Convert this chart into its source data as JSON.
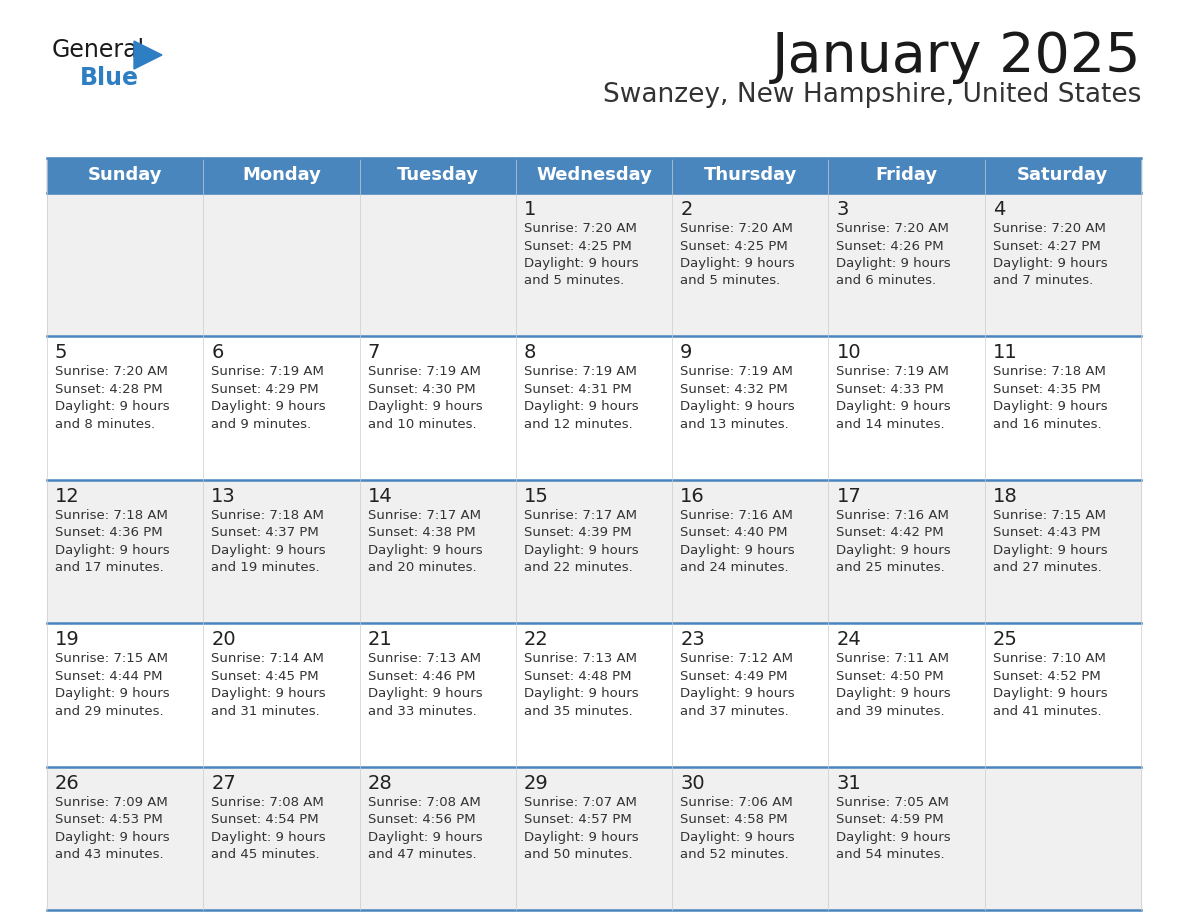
{
  "title": "January 2025",
  "subtitle": "Swanzey, New Hampshire, United States",
  "days_of_week": [
    "Sunday",
    "Monday",
    "Tuesday",
    "Wednesday",
    "Thursday",
    "Friday",
    "Saturday"
  ],
  "header_bg": "#4a86be",
  "header_text": "#ffffff",
  "cell_bg_odd": "#f0f0f0",
  "cell_bg_even": "#ffffff",
  "separator_color": "#4a86be",
  "day_num_color": "#222222",
  "cell_text_color": "#333333",
  "title_color": "#1a1a1a",
  "subtitle_color": "#333333",
  "logo_general_color": "#1a1a1a",
  "logo_blue_color": "#2e7ec4",
  "calendar_data": [
    {
      "day": 1,
      "col": 3,
      "row": 0,
      "sunrise": "7:20 AM",
      "sunset": "4:25 PM",
      "daylight": "9 hours\nand 5 minutes."
    },
    {
      "day": 2,
      "col": 4,
      "row": 0,
      "sunrise": "7:20 AM",
      "sunset": "4:25 PM",
      "daylight": "9 hours\nand 5 minutes."
    },
    {
      "day": 3,
      "col": 5,
      "row": 0,
      "sunrise": "7:20 AM",
      "sunset": "4:26 PM",
      "daylight": "9 hours\nand 6 minutes."
    },
    {
      "day": 4,
      "col": 6,
      "row": 0,
      "sunrise": "7:20 AM",
      "sunset": "4:27 PM",
      "daylight": "9 hours\nand 7 minutes."
    },
    {
      "day": 5,
      "col": 0,
      "row": 1,
      "sunrise": "7:20 AM",
      "sunset": "4:28 PM",
      "daylight": "9 hours\nand 8 minutes."
    },
    {
      "day": 6,
      "col": 1,
      "row": 1,
      "sunrise": "7:19 AM",
      "sunset": "4:29 PM",
      "daylight": "9 hours\nand 9 minutes."
    },
    {
      "day": 7,
      "col": 2,
      "row": 1,
      "sunrise": "7:19 AM",
      "sunset": "4:30 PM",
      "daylight": "9 hours\nand 10 minutes."
    },
    {
      "day": 8,
      "col": 3,
      "row": 1,
      "sunrise": "7:19 AM",
      "sunset": "4:31 PM",
      "daylight": "9 hours\nand 12 minutes."
    },
    {
      "day": 9,
      "col": 4,
      "row": 1,
      "sunrise": "7:19 AM",
      "sunset": "4:32 PM",
      "daylight": "9 hours\nand 13 minutes."
    },
    {
      "day": 10,
      "col": 5,
      "row": 1,
      "sunrise": "7:19 AM",
      "sunset": "4:33 PM",
      "daylight": "9 hours\nand 14 minutes."
    },
    {
      "day": 11,
      "col": 6,
      "row": 1,
      "sunrise": "7:18 AM",
      "sunset": "4:35 PM",
      "daylight": "9 hours\nand 16 minutes."
    },
    {
      "day": 12,
      "col": 0,
      "row": 2,
      "sunrise": "7:18 AM",
      "sunset": "4:36 PM",
      "daylight": "9 hours\nand 17 minutes."
    },
    {
      "day": 13,
      "col": 1,
      "row": 2,
      "sunrise": "7:18 AM",
      "sunset": "4:37 PM",
      "daylight": "9 hours\nand 19 minutes."
    },
    {
      "day": 14,
      "col": 2,
      "row": 2,
      "sunrise": "7:17 AM",
      "sunset": "4:38 PM",
      "daylight": "9 hours\nand 20 minutes."
    },
    {
      "day": 15,
      "col": 3,
      "row": 2,
      "sunrise": "7:17 AM",
      "sunset": "4:39 PM",
      "daylight": "9 hours\nand 22 minutes."
    },
    {
      "day": 16,
      "col": 4,
      "row": 2,
      "sunrise": "7:16 AM",
      "sunset": "4:40 PM",
      "daylight": "9 hours\nand 24 minutes."
    },
    {
      "day": 17,
      "col": 5,
      "row": 2,
      "sunrise": "7:16 AM",
      "sunset": "4:42 PM",
      "daylight": "9 hours\nand 25 minutes."
    },
    {
      "day": 18,
      "col": 6,
      "row": 2,
      "sunrise": "7:15 AM",
      "sunset": "4:43 PM",
      "daylight": "9 hours\nand 27 minutes."
    },
    {
      "day": 19,
      "col": 0,
      "row": 3,
      "sunrise": "7:15 AM",
      "sunset": "4:44 PM",
      "daylight": "9 hours\nand 29 minutes."
    },
    {
      "day": 20,
      "col": 1,
      "row": 3,
      "sunrise": "7:14 AM",
      "sunset": "4:45 PM",
      "daylight": "9 hours\nand 31 minutes."
    },
    {
      "day": 21,
      "col": 2,
      "row": 3,
      "sunrise": "7:13 AM",
      "sunset": "4:46 PM",
      "daylight": "9 hours\nand 33 minutes."
    },
    {
      "day": 22,
      "col": 3,
      "row": 3,
      "sunrise": "7:13 AM",
      "sunset": "4:48 PM",
      "daylight": "9 hours\nand 35 minutes."
    },
    {
      "day": 23,
      "col": 4,
      "row": 3,
      "sunrise": "7:12 AM",
      "sunset": "4:49 PM",
      "daylight": "9 hours\nand 37 minutes."
    },
    {
      "day": 24,
      "col": 5,
      "row": 3,
      "sunrise": "7:11 AM",
      "sunset": "4:50 PM",
      "daylight": "9 hours\nand 39 minutes."
    },
    {
      "day": 25,
      "col": 6,
      "row": 3,
      "sunrise": "7:10 AM",
      "sunset": "4:52 PM",
      "daylight": "9 hours\nand 41 minutes."
    },
    {
      "day": 26,
      "col": 0,
      "row": 4,
      "sunrise": "7:09 AM",
      "sunset": "4:53 PM",
      "daylight": "9 hours\nand 43 minutes."
    },
    {
      "day": 27,
      "col": 1,
      "row": 4,
      "sunrise": "7:08 AM",
      "sunset": "4:54 PM",
      "daylight": "9 hours\nand 45 minutes."
    },
    {
      "day": 28,
      "col": 2,
      "row": 4,
      "sunrise": "7:08 AM",
      "sunset": "4:56 PM",
      "daylight": "9 hours\nand 47 minutes."
    },
    {
      "day": 29,
      "col": 3,
      "row": 4,
      "sunrise": "7:07 AM",
      "sunset": "4:57 PM",
      "daylight": "9 hours\nand 50 minutes."
    },
    {
      "day": 30,
      "col": 4,
      "row": 4,
      "sunrise": "7:06 AM",
      "sunset": "4:58 PM",
      "daylight": "9 hours\nand 52 minutes."
    },
    {
      "day": 31,
      "col": 5,
      "row": 4,
      "sunrise": "7:05 AM",
      "sunset": "4:59 PM",
      "daylight": "9 hours\nand 54 minutes."
    }
  ]
}
